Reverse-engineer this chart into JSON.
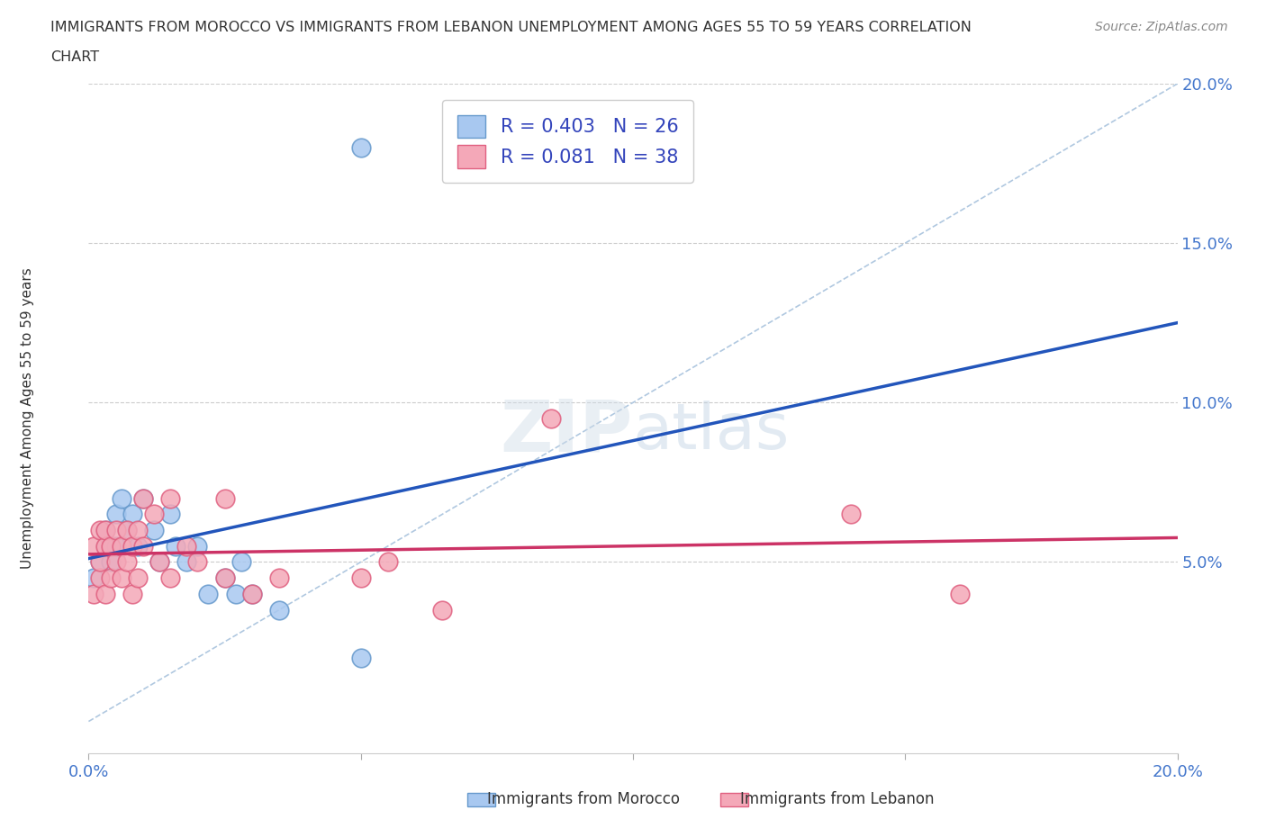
{
  "title_line1": "IMMIGRANTS FROM MOROCCO VS IMMIGRANTS FROM LEBANON UNEMPLOYMENT AMONG AGES 55 TO 59 YEARS CORRELATION",
  "title_line2": "CHART",
  "source": "Source: ZipAtlas.com",
  "ylabel": "Unemployment Among Ages 55 to 59 years",
  "xlim": [
    0.0,
    0.2
  ],
  "ylim": [
    -0.01,
    0.2
  ],
  "xticks": [
    0.0,
    0.05,
    0.1,
    0.15,
    0.2
  ],
  "yticks": [
    0.0,
    0.05,
    0.1,
    0.15,
    0.2
  ],
  "morocco_color": "#a8c8f0",
  "lebanon_color": "#f4a8b8",
  "morocco_edge": "#6699cc",
  "lebanon_edge": "#e06080",
  "trend_morocco_color": "#2255bb",
  "trend_lebanon_color": "#cc3366",
  "refline_color": "#b0c8e0",
  "grid_color": "#cccccc",
  "R_morocco": 0.403,
  "N_morocco": 26,
  "R_lebanon": 0.081,
  "N_lebanon": 38,
  "legend_text_color": "#3344bb",
  "watermark": "ZIPatlas",
  "morocco_x": [
    0.001,
    0.002,
    0.003,
    0.003,
    0.004,
    0.005,
    0.005,
    0.006,
    0.007,
    0.008,
    0.009,
    0.01,
    0.012,
    0.013,
    0.015,
    0.016,
    0.018,
    0.02,
    0.022,
    0.025,
    0.027,
    0.028,
    0.03,
    0.035,
    0.05,
    0.05
  ],
  "morocco_y": [
    0.045,
    0.05,
    0.055,
    0.06,
    0.05,
    0.055,
    0.065,
    0.07,
    0.06,
    0.065,
    0.055,
    0.07,
    0.06,
    0.05,
    0.065,
    0.055,
    0.05,
    0.055,
    0.04,
    0.045,
    0.04,
    0.05,
    0.04,
    0.035,
    0.02,
    0.18
  ],
  "lebanon_x": [
    0.001,
    0.001,
    0.002,
    0.002,
    0.002,
    0.003,
    0.003,
    0.003,
    0.004,
    0.004,
    0.005,
    0.005,
    0.006,
    0.006,
    0.007,
    0.007,
    0.008,
    0.008,
    0.009,
    0.009,
    0.01,
    0.01,
    0.012,
    0.013,
    0.015,
    0.015,
    0.018,
    0.02,
    0.025,
    0.025,
    0.03,
    0.035,
    0.05,
    0.055,
    0.065,
    0.085,
    0.14,
    0.16
  ],
  "lebanon_y": [
    0.04,
    0.055,
    0.045,
    0.06,
    0.05,
    0.055,
    0.04,
    0.06,
    0.055,
    0.045,
    0.06,
    0.05,
    0.055,
    0.045,
    0.06,
    0.05,
    0.055,
    0.04,
    0.06,
    0.045,
    0.07,
    0.055,
    0.065,
    0.05,
    0.07,
    0.045,
    0.055,
    0.05,
    0.045,
    0.07,
    0.04,
    0.045,
    0.045,
    0.05,
    0.035,
    0.095,
    0.065,
    0.04
  ]
}
